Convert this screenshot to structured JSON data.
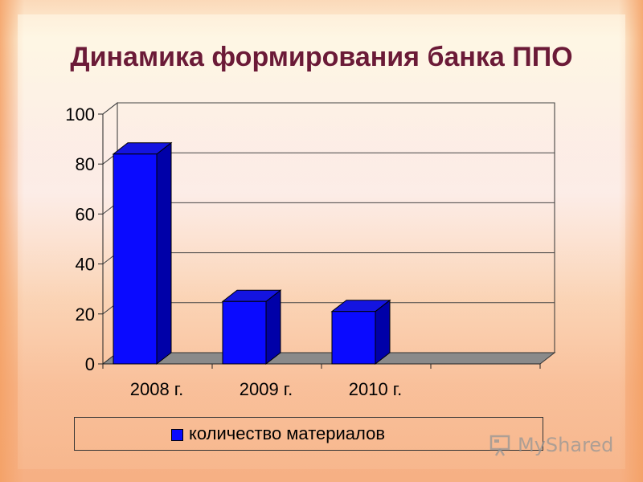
{
  "slide": {
    "title": "Динамика формирования банка ППО"
  },
  "chart_data": {
    "type": "bar",
    "categories": [
      "2008 г.",
      "2009 г.",
      "2010 г.",
      ""
    ],
    "series": [
      {
        "name": "количество материалов",
        "values": [
          84,
          25,
          21,
          null
        ],
        "color": "#0a0aff"
      }
    ],
    "yticks": [
      "0",
      "20",
      "40",
      "60",
      "80",
      "100"
    ],
    "ylim": [
      0,
      100
    ],
    "grid": true,
    "legend_position": "bottom",
    "style": "3d"
  },
  "watermark": {
    "text": "MyShared"
  }
}
